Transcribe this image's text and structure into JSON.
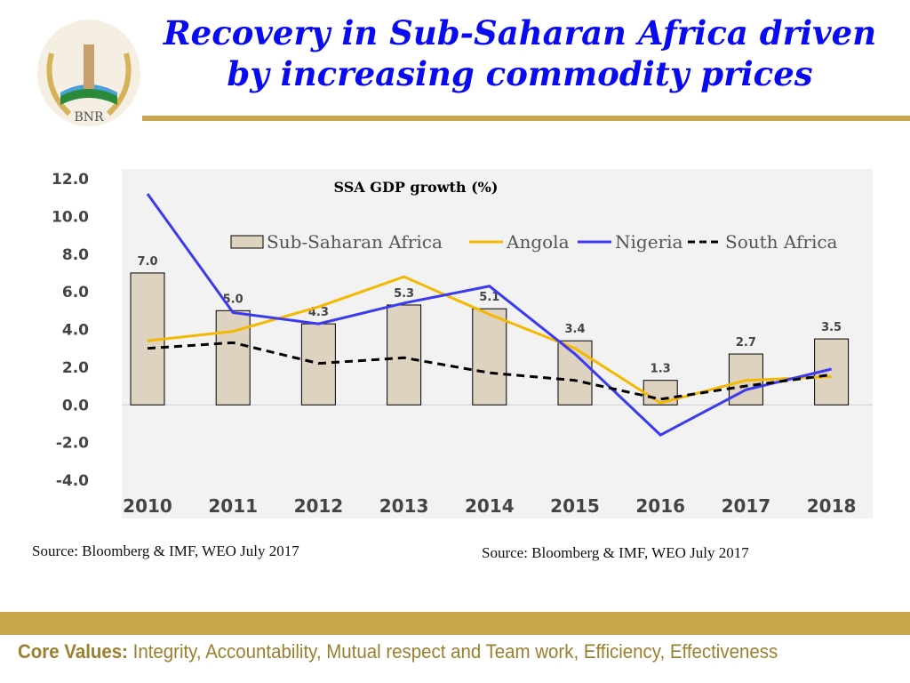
{
  "header": {
    "title": "Recovery in Sub-Saharan Africa driven by increasing commodity prices",
    "logo_text": "BNR"
  },
  "chart_data": {
    "type": "bar+line",
    "title": "SSA GDP growth (%)",
    "categories": [
      "2010",
      "2011",
      "2012",
      "2013",
      "2014",
      "2015",
      "2016",
      "2017",
      "2018"
    ],
    "ylim": [
      -4,
      12
    ],
    "yticks": [
      "12.0",
      "10.0",
      "8.0",
      "6.0",
      "4.0",
      "2.0",
      "0.0",
      "-2.0",
      "-4.0"
    ],
    "legend_position": "top",
    "series": [
      {
        "name": "Sub-Saharan Africa",
        "kind": "bar",
        "color": "#ddd3c0",
        "values": [
          7.0,
          5.0,
          4.3,
          5.3,
          5.1,
          3.4,
          1.3,
          2.7,
          3.5
        ],
        "labels": [
          "7.0",
          "5.0",
          "4.3",
          "5.3",
          "5.1",
          "3.4",
          "1.3",
          "2.7",
          "3.5"
        ]
      },
      {
        "name": "Angola",
        "kind": "line",
        "color": "#f5b800",
        "values": [
          3.4,
          3.9,
          5.2,
          6.8,
          4.8,
          3.0,
          0.1,
          1.3,
          1.5
        ]
      },
      {
        "name": "Nigeria",
        "kind": "line",
        "color": "#3a3af0",
        "values": [
          11.2,
          4.9,
          4.3,
          5.4,
          6.3,
          2.7,
          -1.6,
          0.8,
          1.9
        ]
      },
      {
        "name": "South Africa",
        "kind": "line",
        "dashed": true,
        "color": "#000000",
        "values": [
          3.0,
          3.3,
          2.2,
          2.5,
          1.7,
          1.3,
          0.3,
          1.0,
          1.6
        ]
      }
    ]
  },
  "sources": [
    "Source: Bloomberg & IMF, WEO July 2017",
    "Source: Bloomberg & IMF, WEO July 2017"
  ],
  "footer": {
    "label": "Core Values:",
    "text": " Integrity, Accountability, Mutual respect and Team work, Efficiency, Effectiveness"
  }
}
